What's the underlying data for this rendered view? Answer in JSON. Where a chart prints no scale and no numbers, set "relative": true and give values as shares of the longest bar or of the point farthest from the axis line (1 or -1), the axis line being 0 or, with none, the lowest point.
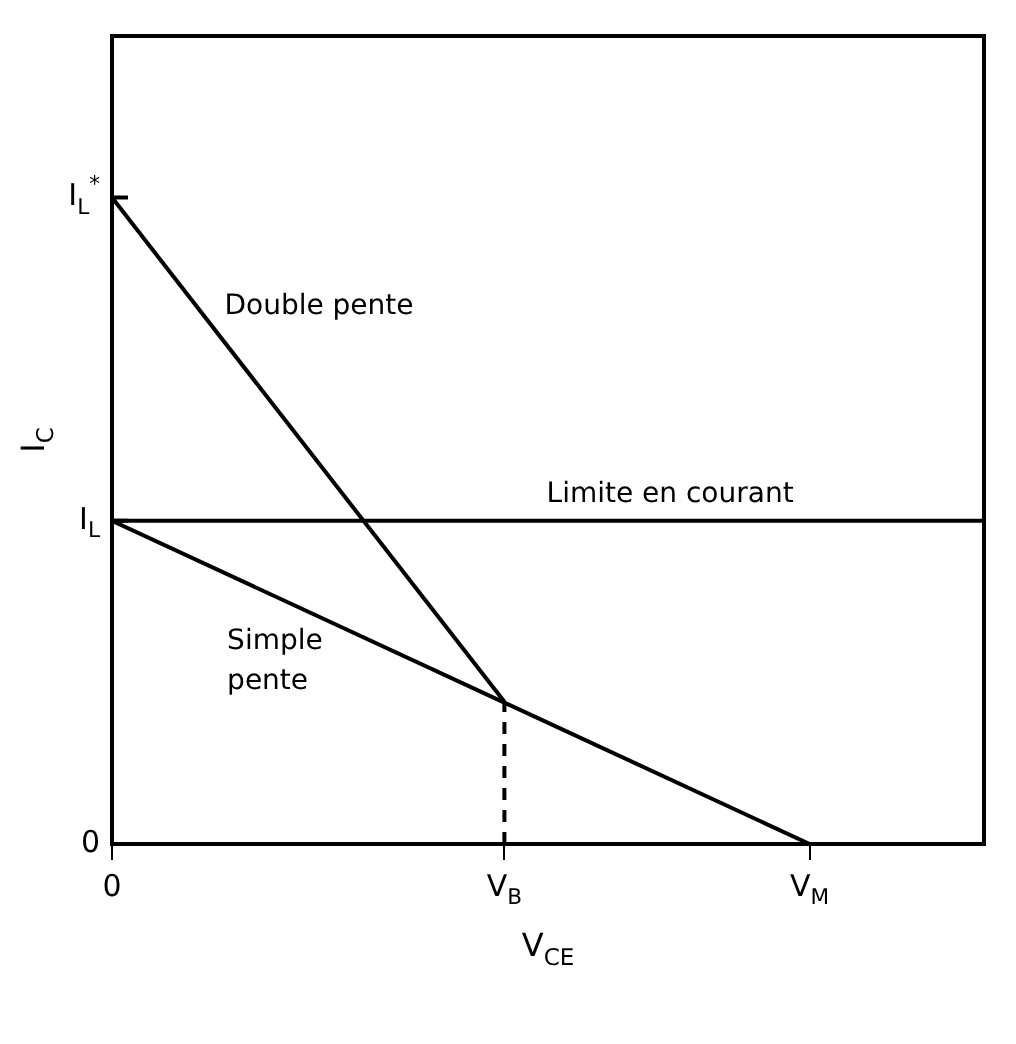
{
  "chart_data": {
    "type": "line",
    "relative": true,
    "xlabel": "V$_{CE}$",
    "ylabel": "I$_{C}$",
    "categories": [
      "0",
      null,
      null,
      null,
      null,
      null,
      null,
      null,
      null,
      "V$_{B}$",
      null,
      null,
      null,
      null,
      null,
      null,
      "V$_{M}$",
      null,
      null,
      null,
      null
    ],
    "annotations": [
      "0",
      {
        "text": "I$_{L}$",
        "x": "0",
        "y": 0.5
      },
      {
        "text": "I$_{L}$$^{*}$",
        "x": "0",
        "y": 1
      }
    ],
    "series": [
      {
        "name": "Double pente",
        "color": "#000000",
        "values": [
          1,
          null,
          null,
          null,
          null,
          null,
          null,
          null,
          null,
          0.22,
          null,
          null,
          null,
          null,
          null,
          null,
          null,
          null,
          null,
          null,
          null
        ]
      },
      {
        "name": "Simple pente",
        "color": "#000000",
        "values": [
          0.5,
          null,
          null,
          null,
          null,
          null,
          null,
          null,
          null,
          null,
          null,
          null,
          null,
          null,
          null,
          null,
          0,
          null,
          null,
          null,
          null
        ]
      },
      {
        "color": "#000000",
        "x": [
          "V$_{B}$",
          "V$_{B}$"
        ],
        "values": [
          0,
          0.22
        ],
        "line_style": "dashed"
      }
    ],
    "ref_lines": [
      {
        "axis": "y",
        "value": 0.5,
        "label": "Limite en courant",
        "color": "#000000"
      }
    ],
    "grid": false,
    "legend": false,
    "marker": "none"
  }
}
